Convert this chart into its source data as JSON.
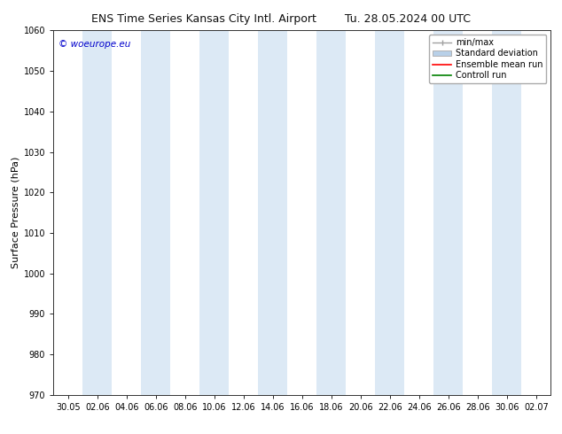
{
  "title_left": "ENS Time Series Kansas City Intl. Airport",
  "title_right": "Tu. 28.05.2024 00 UTC",
  "ylabel": "Surface Pressure (hPa)",
  "ylim": [
    970,
    1060
  ],
  "yticks": [
    970,
    980,
    990,
    1000,
    1010,
    1020,
    1030,
    1040,
    1050,
    1060
  ],
  "xtick_labels": [
    "30.05",
    "02.06",
    "04.06",
    "06.06",
    "08.06",
    "10.06",
    "12.06",
    "14.06",
    "16.06",
    "18.06",
    "20.06",
    "22.06",
    "24.06",
    "26.06",
    "28.06",
    "30.06",
    "02.07"
  ],
  "watermark": "© woeurope.eu",
  "watermark_color": "#0000cc",
  "background_color": "#ffffff",
  "plot_bg_color": "#ffffff",
  "band_color": "#dce9f5",
  "band_positions": [
    1,
    3,
    5,
    7,
    9,
    11,
    13,
    15
  ],
  "legend_labels": [
    "min/max",
    "Standard deviation",
    "Ensemble mean run",
    "Controll run"
  ],
  "legend_colors": [
    "#a0a0a0",
    "#b8d0e8",
    "#ff0000",
    "#008000"
  ],
  "title_fontsize": 9,
  "ylabel_fontsize": 8,
  "tick_fontsize": 7,
  "watermark_fontsize": 7.5,
  "legend_fontsize": 7
}
